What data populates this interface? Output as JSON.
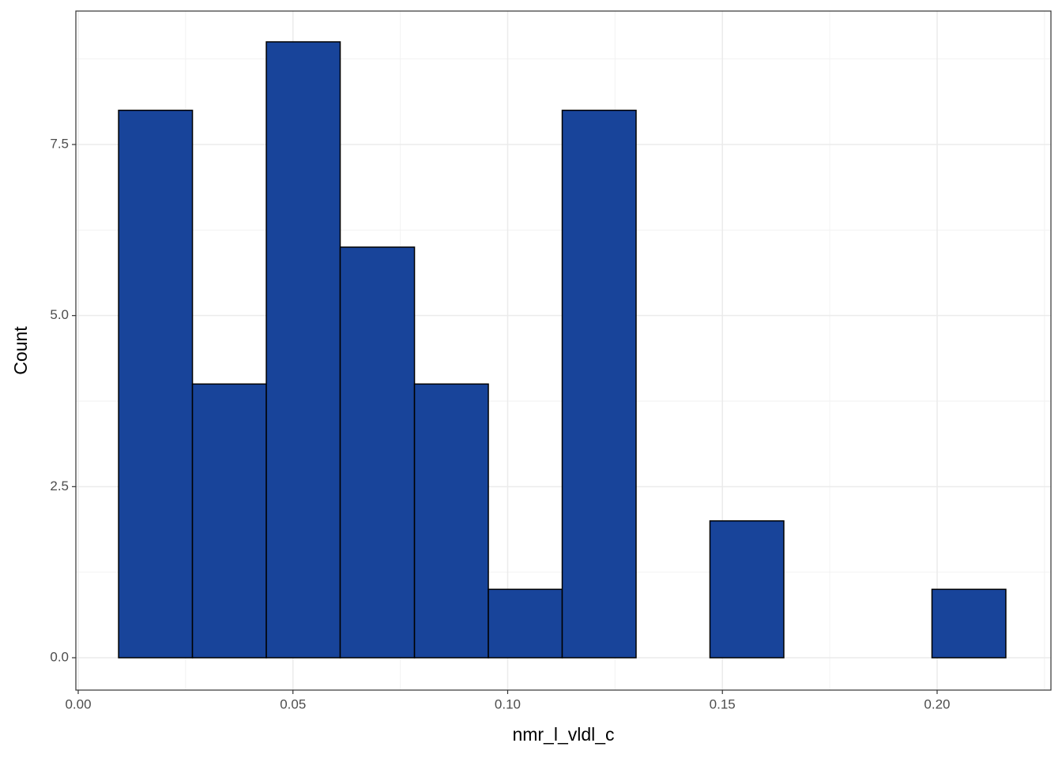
{
  "chart_data": {
    "type": "histogram",
    "xlabel": "nmr_l_vldl_c",
    "ylabel": "Count",
    "bins": [
      0.0094,
      0.0266,
      0.0438,
      0.061,
      0.0783,
      0.0955,
      0.1127,
      0.1299,
      0.1471,
      0.1643,
      0.1816,
      0.1988,
      0.216
    ],
    "values": [
      8,
      4,
      9,
      6,
      4,
      1,
      8,
      0,
      2,
      0,
      0,
      1
    ],
    "color": "#18449a",
    "edgecolor": "#000000",
    "xlim": [
      -0.00055,
      0.2265
    ],
    "xticks": [
      {
        "value": 0,
        "label": "0.00"
      },
      {
        "value": 0.05,
        "label": "0.05"
      },
      {
        "value": 0.1,
        "label": "0.10"
      },
      {
        "value": 0.15,
        "label": "0.15"
      },
      {
        "value": 0.2,
        "label": "0.20"
      }
    ],
    "ylim": [
      -0.473,
      9.45
    ],
    "yticks": [
      {
        "value": 0,
        "label": "0.0"
      },
      2.5,
      {
        "value": 5,
        "label": "5.0"
      },
      7.5
    ],
    "grid": true
  }
}
